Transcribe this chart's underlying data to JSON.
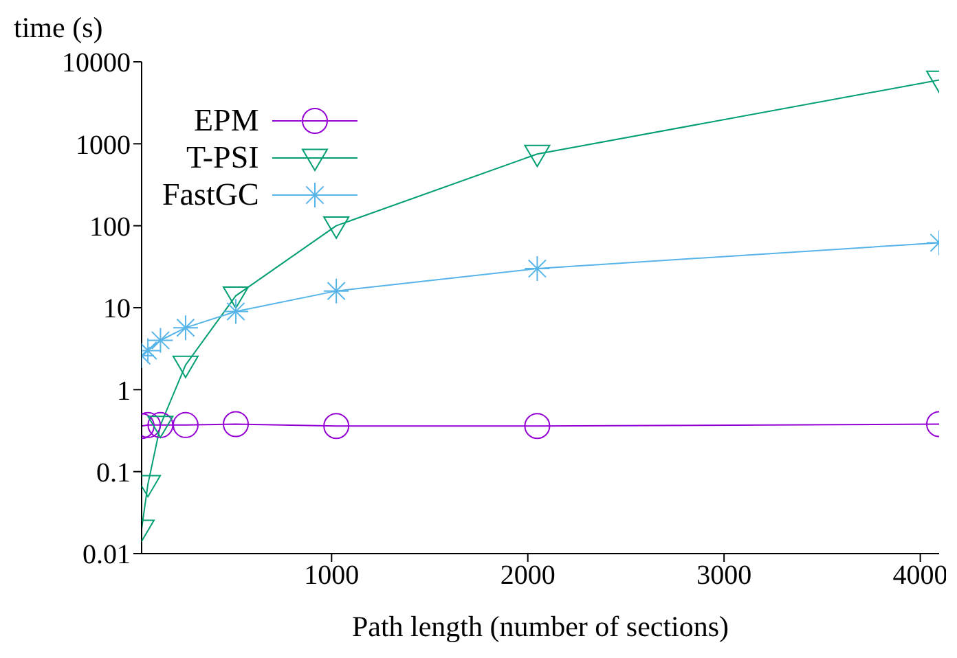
{
  "chart_data": {
    "type": "line",
    "ylabel": "time (s)",
    "xlabel": "Path length (number of sections)",
    "x": [
      32,
      64,
      128,
      256,
      512,
      1024,
      2048,
      4096
    ],
    "xlim": [
      32,
      4096
    ],
    "xticks": [
      1000,
      2000,
      3000,
      4000
    ],
    "ylim": [
      0.01,
      10000
    ],
    "yticks": [
      0.01,
      0.1,
      1,
      10,
      100,
      1000,
      10000
    ],
    "log": "y",
    "legend": "top left",
    "series": [
      {
        "name": "EPM",
        "color": "#9400d3",
        "marker": "circle",
        "values": [
          0.36,
          0.37,
          0.37,
          0.37,
          0.38,
          0.36,
          0.36,
          0.38
        ]
      },
      {
        "name": "T-PSI",
        "color": "#009e73",
        "marker": "triangle",
        "values": [
          0.02,
          0.07,
          0.37,
          2,
          14,
          100,
          750,
          6000
        ]
      },
      {
        "name": "FastGC",
        "color": "#56b4e9",
        "marker": "cross",
        "values": [
          2.6,
          3,
          4,
          5.7,
          9,
          16,
          30,
          62
        ]
      }
    ]
  }
}
